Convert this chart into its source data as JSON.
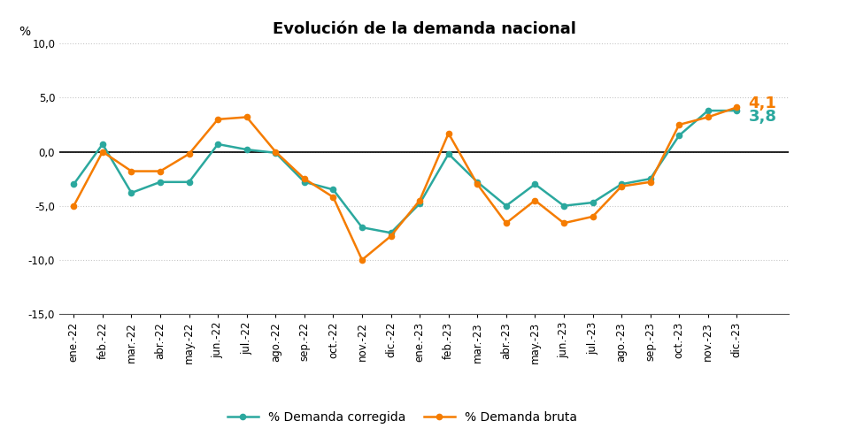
{
  "title": "Evolución de la demanda nacional",
  "ylabel": "%",
  "ylim": [
    -15.0,
    10.0
  ],
  "yticks": [
    -15.0,
    -10.0,
    -5.0,
    0.0,
    5.0,
    10.0
  ],
  "categories": [
    "ene.-22",
    "feb.-22",
    "mar.-22",
    "abr.-22",
    "may.-22",
    "jun.-22",
    "jul.-22",
    "ago.-22",
    "sep.-22",
    "oct.-22",
    "nov.-22",
    "dic.-22",
    "ene.-23",
    "feb.-23",
    "mar.-23",
    "abr.-23",
    "may.-23",
    "jun.-23",
    "jul.-23",
    "ago.-23",
    "sep.-23",
    "oct.-23",
    "nov.-23",
    "dic.-23"
  ],
  "demanda_corregida": [
    -3.0,
    0.7,
    -3.8,
    -2.8,
    -2.8,
    0.7,
    0.2,
    -0.1,
    -2.8,
    -3.5,
    -7.0,
    -7.5,
    -4.8,
    -0.2,
    -2.8,
    -5.0,
    -3.0,
    -5.0,
    -4.7,
    -3.0,
    -2.5,
    1.5,
    3.8,
    3.8
  ],
  "demanda_bruta": [
    -5.0,
    0.0,
    -1.8,
    -1.8,
    -0.2,
    3.0,
    3.2,
    0.0,
    -2.5,
    -4.2,
    -10.0,
    -7.8,
    -4.5,
    1.7,
    -3.0,
    -6.6,
    -4.5,
    -6.6,
    -6.0,
    -3.2,
    -2.8,
    2.5,
    3.2,
    4.1
  ],
  "color_corregida": "#2ba89e",
  "color_bruta": "#f57c00",
  "label_corregida": "% Demanda corregida",
  "label_bruta": "% Demanda bruta",
  "last_label_bruta": "4,1",
  "last_label_corregida": "3,8",
  "background_color": "#ffffff",
  "grid_color": "#c8c8c8",
  "title_fontsize": 13,
  "tick_fontsize": 8.5,
  "label_fontsize": 10,
  "annotation_fontsize": 13
}
